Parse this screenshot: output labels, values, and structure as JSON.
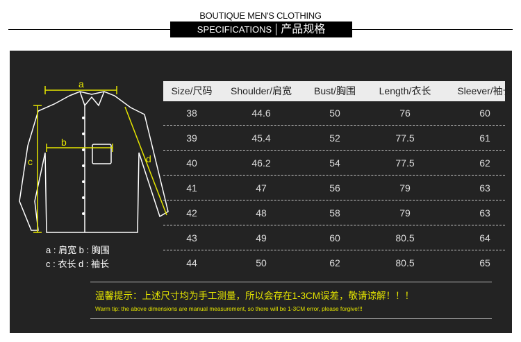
{
  "header": {
    "brand": "BOUTIQUE MEN'S CLOTHING",
    "spec_en": "SPECIFICATIONS",
    "spec_zh": "产品规格"
  },
  "diagram": {
    "labels": {
      "a": "a",
      "b": "b",
      "c": "c",
      "d": "d"
    },
    "legend_line1": "a : 肩宽 b : 胸围",
    "legend_line2": "c : 衣长 d : 袖长",
    "line_color": "#e6e600"
  },
  "table": {
    "columns": [
      "Size/尺码",
      "Shoulder/肩宽",
      "Bust/胸围",
      "Length/衣长",
      "Sleever/袖长"
    ],
    "rows": [
      [
        "38",
        "44.6",
        "50",
        "76",
        "60"
      ],
      [
        "39",
        "45.4",
        "52",
        "77.5",
        "61"
      ],
      [
        "40",
        "46.2",
        "54",
        "77.5",
        "62"
      ],
      [
        "41",
        "47",
        "56",
        "79",
        "63"
      ],
      [
        "42",
        "48",
        "58",
        "79",
        "63"
      ],
      [
        "43",
        "49",
        "60",
        "80.5",
        "64"
      ],
      [
        "44",
        "50",
        "62",
        "80.5",
        "65"
      ]
    ]
  },
  "tip": {
    "zh": "温馨提示：上述尺寸均为手工测量，所以会存在1-3CM误差，敬请谅解！！！",
    "en": "Warm tip: the above dimensions are manual measurement, so there will be 1-3CM error, please forgive!!!"
  }
}
